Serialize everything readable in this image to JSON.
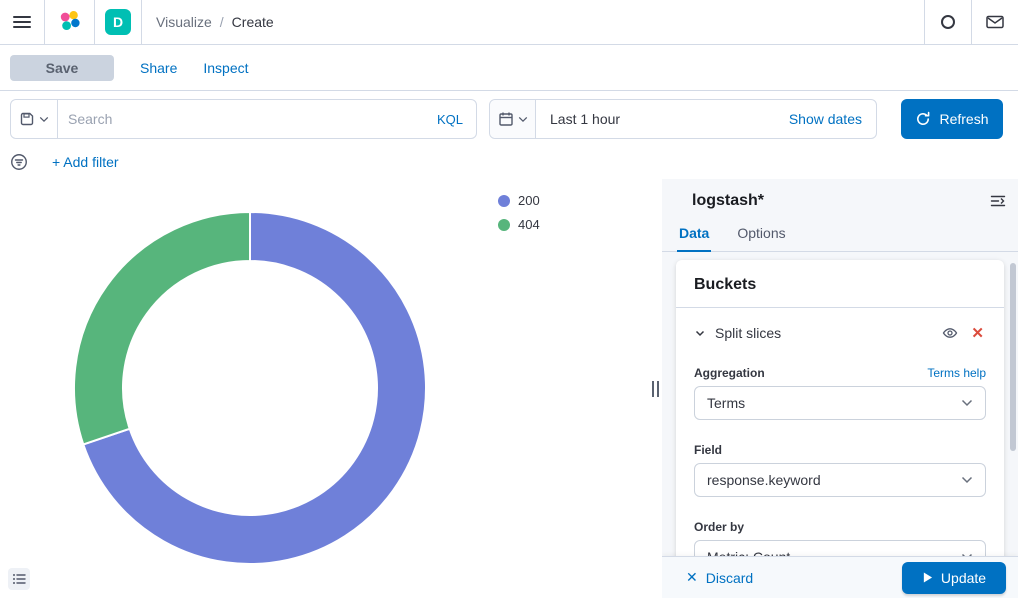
{
  "header": {
    "space_badge": "D",
    "breadcrumbs": [
      "Visualize",
      "Create"
    ],
    "separator": "/"
  },
  "toolbar": {
    "save": "Save",
    "share": "Share",
    "inspect": "Inspect"
  },
  "query_bar": {
    "search_placeholder": "Search",
    "language_label": "KQL",
    "time_range": "Last 1 hour",
    "show_dates_label": "Show dates",
    "refresh_label": "Refresh"
  },
  "filter_bar": {
    "add_filter_label": "+ Add filter"
  },
  "chart_data": {
    "type": "pie",
    "donut": true,
    "title": "",
    "labels": [
      "200",
      "404"
    ],
    "values": [
      69.8,
      30.2
    ],
    "value_unit": "percent_estimated",
    "colors": [
      "#6F80D9",
      "#57B57C"
    ],
    "start_angle_deg": 0,
    "direction": "clockwise",
    "inner_radius_ratio": 0.72,
    "legend_position": "top-right"
  },
  "panel": {
    "title": "logstash*",
    "tabs": [
      {
        "label": "Data",
        "active": true
      },
      {
        "label": "Options",
        "active": false
      }
    ],
    "buckets": {
      "heading": "Buckets",
      "bucket_label": "Split slices",
      "aggregation_label": "Aggregation",
      "terms_help_label": "Terms help",
      "aggregation_value": "Terms",
      "field_label": "Field",
      "field_value": "response.keyword",
      "order_by_label": "Order by",
      "order_by_value": "Metric: Count"
    },
    "footer": {
      "discard_label": "Discard",
      "update_label": "Update"
    }
  },
  "colors": {
    "primary": "#0071C2",
    "link": "#0071C2",
    "border": "#D3DAE6",
    "text": "#343741",
    "muted": "#69707D",
    "danger": "#DB4B3C",
    "badge_teal": "#00BFB3",
    "panel_bg": "#F5F7FA"
  }
}
